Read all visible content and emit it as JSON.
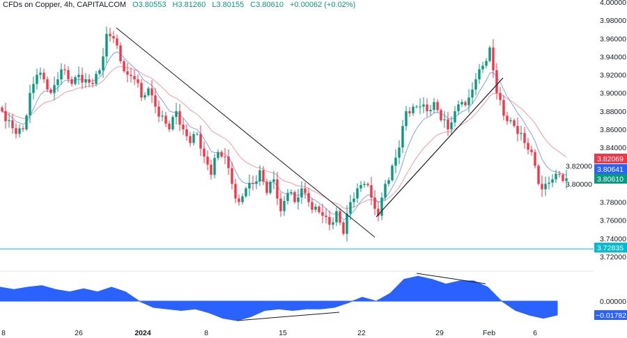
{
  "header": {
    "title": "CFDs on Copper, 4h, CAPITALCOM",
    "open": "O3.80553",
    "high": "H3.81260",
    "low": "L3.80155",
    "close": "C3.80610",
    "change": "+0.00062 (+0.02%)"
  },
  "colors": {
    "up": "#089981",
    "down": "#f23645",
    "fast_ma": "#2962ff",
    "slow_ma": "#f23645",
    "support": "#00bcd4",
    "osc": "#2962ff"
  },
  "chart_data": [
    {
      "type": "candlestick",
      "title": "CFDs on Copper, 4h, CAPITALCOM",
      "ylim": [
        3.72,
        4.0
      ],
      "y_ticks": [
        "4.00000",
        "3.98000",
        "3.96000",
        "3.94000",
        "3.92000",
        "3.90000",
        "3.88000",
        "3.86000",
        "3.84000",
        "3.82000",
        "3.80000",
        "3.78000",
        "3.76000",
        "3.74000",
        "3.72000"
      ],
      "x_ticks": [
        "8",
        "26",
        "2024",
        "8",
        "15",
        "22",
        "29",
        "Feb",
        "6"
      ],
      "closes_keypoints": [
        3.88,
        3.87,
        3.855,
        3.86,
        3.9,
        3.92,
        3.915,
        3.9,
        3.915,
        3.925,
        3.91,
        3.92,
        3.915,
        3.91,
        3.925,
        3.965,
        3.96,
        3.935,
        3.92,
        3.915,
        3.895,
        3.905,
        3.885,
        3.875,
        3.86,
        3.88,
        3.86,
        3.845,
        3.855,
        3.83,
        3.81,
        3.835,
        3.83,
        3.8,
        3.78,
        3.795,
        3.8,
        3.815,
        3.79,
        3.805,
        3.77,
        3.79,
        3.78,
        3.795,
        3.78,
        3.775,
        3.765,
        3.755,
        3.77,
        3.745,
        3.78,
        3.795,
        3.8,
        3.785,
        3.765,
        3.8,
        3.82,
        3.84,
        3.88,
        3.885,
        3.885,
        3.88,
        3.89,
        3.87,
        3.86,
        3.88,
        3.89,
        3.895,
        3.915,
        3.93,
        3.95,
        3.9,
        3.875,
        3.87,
        3.855,
        3.845,
        3.835,
        3.8,
        3.8,
        3.805,
        3.81,
        3.8061
      ],
      "price_tags": [
        {
          "label": "3.82069",
          "series": "slow_ma",
          "value": 3.82069
        },
        {
          "label": "3.80641",
          "series": "fast_ma",
          "value": 3.80641
        },
        {
          "label": "3.80610",
          "series": "close",
          "value": 3.8061
        },
        {
          "label": "3.72835",
          "series": "support",
          "value": 3.72835
        }
      ],
      "support_level": 3.72835
    },
    {
      "type": "area",
      "title": "Oscillator",
      "y_ticks": [
        "0.00000"
      ],
      "last_label": "−0.01782",
      "values": [
        0.018,
        0.015,
        0.018,
        0.02,
        0.015,
        0.012,
        0.016,
        0.012,
        0.018,
        0.012,
        0.0,
        -0.008,
        -0.01,
        -0.012,
        -0.01,
        -0.015,
        -0.022,
        -0.025,
        -0.02,
        -0.012,
        -0.01,
        -0.012,
        -0.01,
        -0.01,
        -0.008,
        -0.002,
        0.005,
        0.0,
        0.01,
        0.028,
        0.032,
        0.028,
        0.022,
        0.026,
        0.026,
        0.018,
        0.0,
        -0.012,
        -0.018,
        -0.022,
        -0.01782
      ]
    }
  ]
}
